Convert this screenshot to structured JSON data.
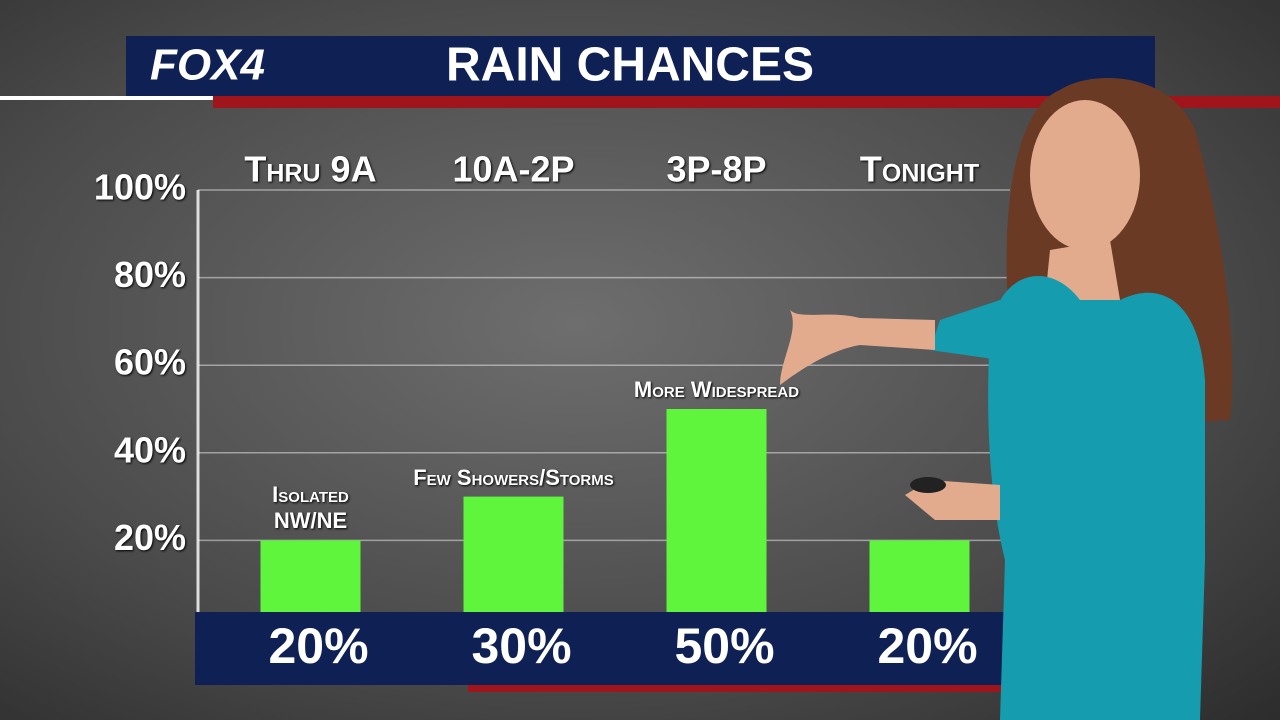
{
  "logo": "FOX4",
  "chart_data": {
    "type": "bar",
    "title": "RAIN CHANCES",
    "categories": [
      "Thru 9A",
      "10A-2P",
      "3P-8P",
      "Tonight"
    ],
    "values": [
      20,
      30,
      50,
      20
    ],
    "value_labels": [
      "20%",
      "30%",
      "50%",
      "20%"
    ],
    "annotations": [
      "Isolated NW/NE",
      "Few Showers/Storms",
      "More Widespread",
      null
    ],
    "color": "#5ff53c",
    "ylim": [
      0,
      100
    ],
    "yticks": [
      {
        "value": 20,
        "label": "20%"
      },
      {
        "value": 40,
        "label": "40%"
      },
      {
        "value": 60,
        "label": "60%"
      },
      {
        "value": 80,
        "label": "80%"
      },
      {
        "value": 100,
        "label": "100%"
      }
    ],
    "grid": true
  }
}
